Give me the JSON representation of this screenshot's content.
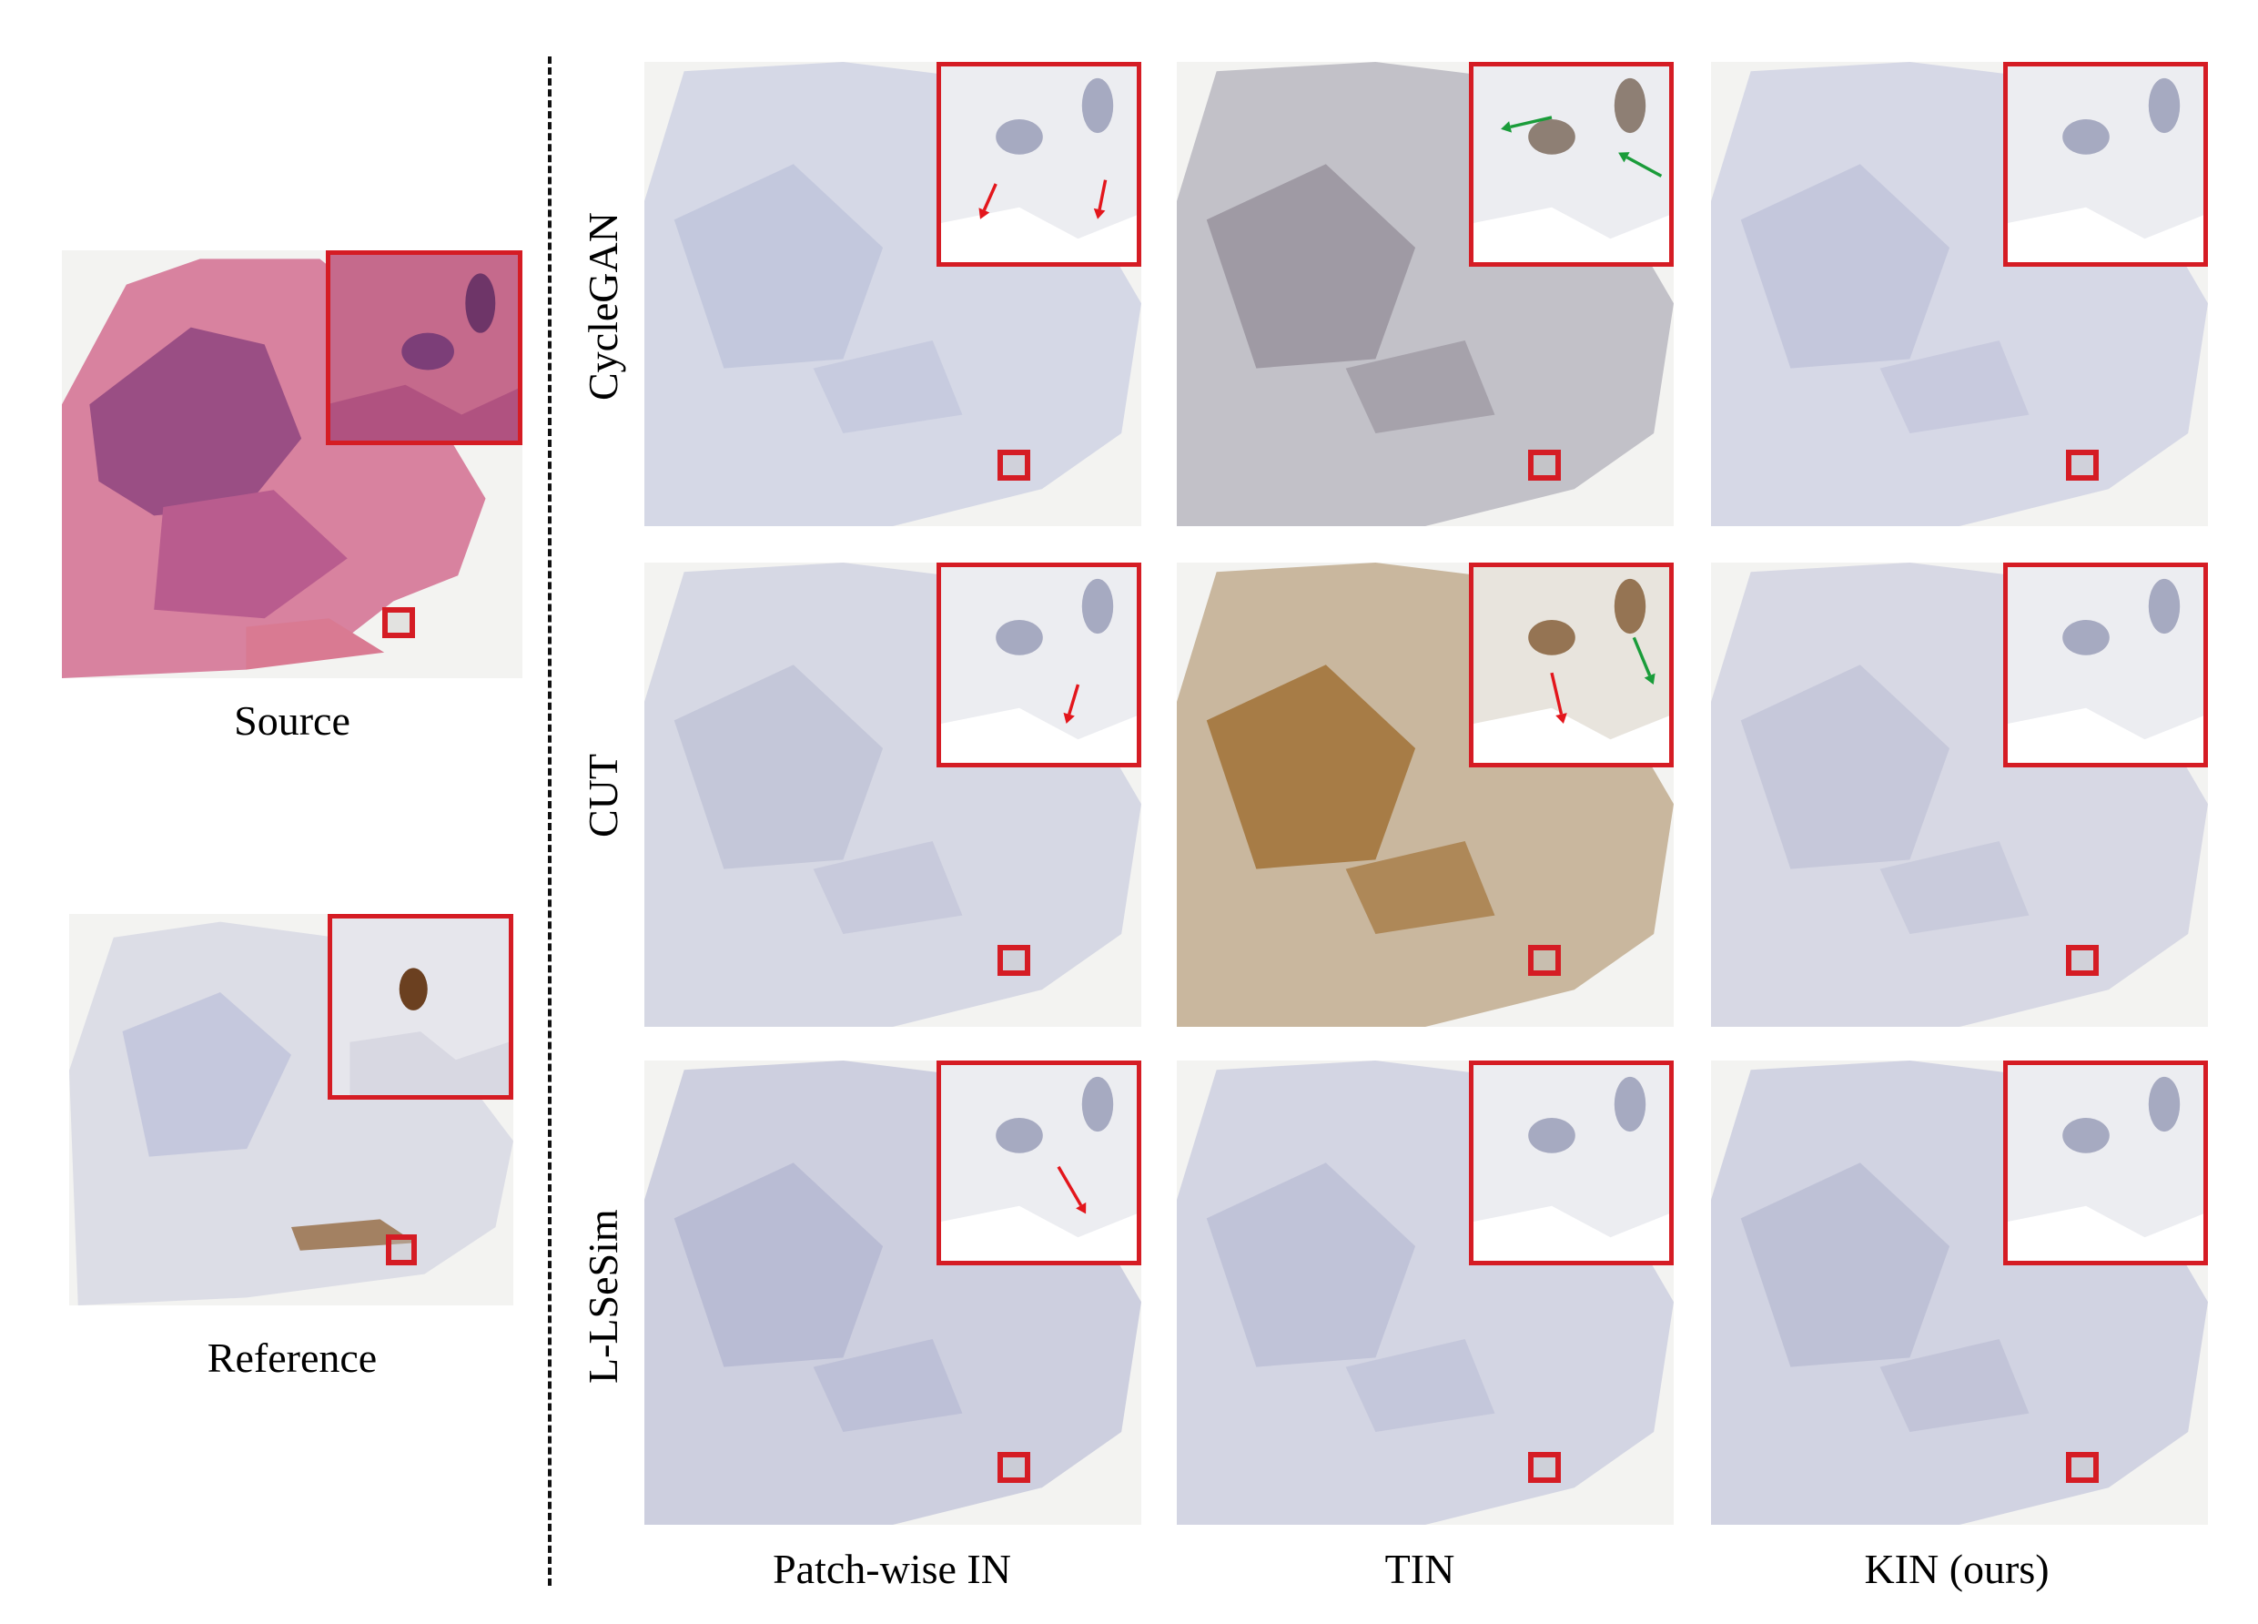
{
  "source_caption": "Source",
  "reference_caption": "Reference",
  "row_labels": [
    "CycleGAN",
    "CUT",
    "L-LSeSim"
  ],
  "column_labels": [
    "Patch-wise IN",
    "TIN",
    "KIN (ours)"
  ],
  "colors": {
    "highlight_box": "#d51c24",
    "arrow_red": "#e3161c",
    "arrow_green": "#1a9c3a",
    "he_stain": "#c45a84",
    "ihc_counterstain": "#b9bcd4",
    "dab_brown": "#8a5a2a"
  }
}
